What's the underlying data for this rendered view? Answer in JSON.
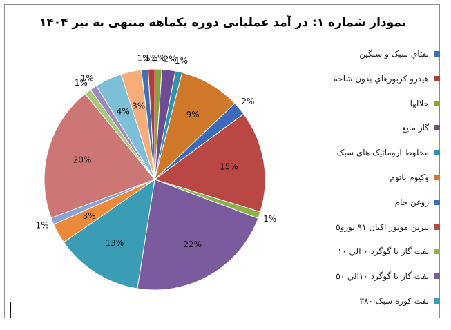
{
  "chart_data": {
    "type": "pie",
    "title": "نمودار شماره ۱: در آمد عملیاتی دوره یکماهه منتهی به تیر ۱۴۰۴",
    "legend_position": "right",
    "slices": [
      {
        "name": "نفتاي سبک و سنگين",
        "value": 1,
        "label": "1%",
        "color": "#3f6fb5"
      },
      {
        "name": "هيدرو کربورهاي بدون شاخه",
        "value": 1,
        "label": "1%",
        "color": "#b03d3a"
      },
      {
        "name": "حلالها",
        "value": 1,
        "label": "1%",
        "color": "#86a43a"
      },
      {
        "name": "گاز مايع",
        "value": 2,
        "label": "2%",
        "color": "#6d4b95"
      },
      {
        "name": "مخلوط آروماتيک هاي سبک",
        "value": 1,
        "label": "1%",
        "color": "#2f93ad"
      },
      {
        "name": "وکيوم باتوم",
        "value": 9,
        "label": "9%",
        "color": "#d07829"
      },
      {
        "name": "روغن خام",
        "value": 2,
        "label": "2%",
        "color": "#3c6bbd"
      },
      {
        "name": "بنزين موتور اکتان ۹۱ يورو۵",
        "value": 15,
        "label": "15%",
        "color": "#b94744"
      },
      {
        "name": "نفت گاز با گوگرد ۰ الي ۱۰",
        "value": 1,
        "label": "1%",
        "color": "#8fb14a"
      },
      {
        "name": "نفت گاز با گوگرد ۱۰الي ۵۰",
        "value": 22,
        "label": "22%",
        "color": "#7a5c9e"
      },
      {
        "name": "نفت کوره سبک ۳۸۰",
        "value": 13,
        "label": "13%",
        "color": "#3a9cb5"
      },
      {
        "name": "",
        "value": 3,
        "label": "3%",
        "color": "#ec8a3c"
      },
      {
        "name": "",
        "value": 1,
        "label": "1%",
        "color": "#8aa2d4"
      },
      {
        "name": "",
        "value": 20,
        "label": "20%",
        "color": "#cc7775"
      },
      {
        "name": "",
        "value": 1,
        "label": "1%",
        "color": "#a9c77a"
      },
      {
        "name": "",
        "value": 1,
        "label": "1%",
        "color": "#9d8bc0"
      },
      {
        "name": "",
        "value": 4,
        "label": "4%",
        "color": "#7dbfd6"
      },
      {
        "name": "",
        "value": 3,
        "label": "3%",
        "color": "#f5ad7a"
      }
    ]
  }
}
